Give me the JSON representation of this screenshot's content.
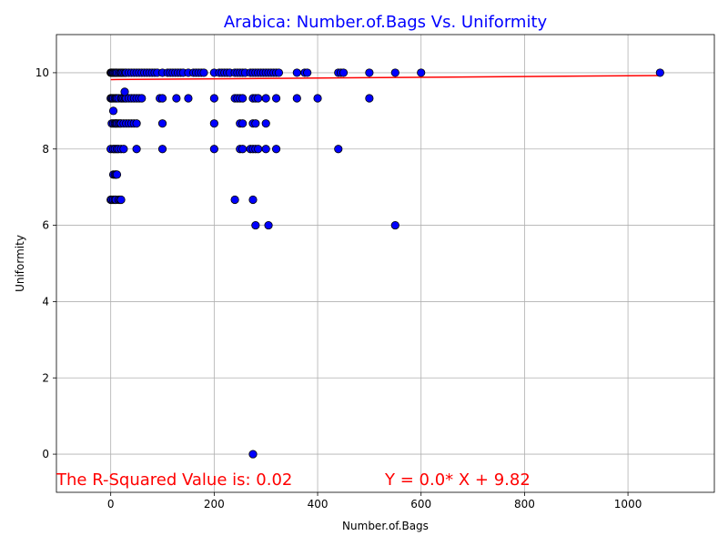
{
  "chart_data": {
    "type": "scatter",
    "title": "Arabica: Number.of.Bags Vs. Uniformity",
    "xlabel": "Number.of.Bags",
    "ylabel": "Uniformity",
    "xlim": [
      -105,
      1167
    ],
    "ylim": [
      -1,
      11
    ],
    "xticks": [
      0,
      200,
      400,
      600,
      800,
      1000
    ],
    "yticks": [
      0,
      2,
      4,
      6,
      8,
      10
    ],
    "grid": true,
    "colors": {
      "points": "#0000ff",
      "point_edge": "#000000",
      "fit_line": "#ff0000",
      "title": "#0000ff",
      "annotation": "#ff0000"
    },
    "points": {
      "x": [
        0,
        1,
        2,
        3,
        5,
        6,
        8,
        10,
        12,
        15,
        18,
        20,
        22,
        25,
        28,
        30,
        35,
        40,
        45,
        50,
        55,
        60,
        65,
        70,
        75,
        80,
        85,
        90,
        100,
        110,
        115,
        120,
        125,
        130,
        135,
        140,
        150,
        160,
        165,
        170,
        175,
        180,
        200,
        210,
        215,
        220,
        225,
        230,
        240,
        245,
        250,
        255,
        260,
        270,
        275,
        280,
        285,
        290,
        295,
        300,
        305,
        310,
        315,
        320,
        325,
        360,
        375,
        380,
        440,
        445,
        450,
        500,
        550,
        600,
        1062,
        0,
        1,
        3,
        5,
        8,
        10,
        12,
        15,
        20,
        22,
        25,
        28,
        30,
        35,
        40,
        45,
        50,
        55,
        60,
        95,
        100,
        127,
        150,
        200,
        240,
        245,
        250,
        255,
        275,
        280,
        285,
        300,
        320,
        360,
        400,
        500,
        2,
        5,
        8,
        10,
        12,
        15,
        18,
        20,
        25,
        30,
        35,
        40,
        45,
        50,
        100,
        200,
        250,
        255,
        275,
        280,
        300,
        0,
        5,
        8,
        12,
        15,
        20,
        25,
        50,
        100,
        200,
        250,
        255,
        270,
        275,
        280,
        285,
        300,
        320,
        440,
        5,
        8,
        10,
        12,
        0,
        2,
        5,
        8,
        10,
        15,
        18,
        20,
        240,
        275,
        280,
        305,
        550,
        275,
        5,
        27
      ],
      "y": [
        10,
        10,
        10,
        10,
        10,
        10,
        10,
        10,
        10,
        10,
        10,
        10,
        10,
        10,
        10,
        10,
        10,
        10,
        10,
        10,
        10,
        10,
        10,
        10,
        10,
        10,
        10,
        10,
        10,
        10,
        10,
        10,
        10,
        10,
        10,
        10,
        10,
        10,
        10,
        10,
        10,
        10,
        10,
        10,
        10,
        10,
        10,
        10,
        10,
        10,
        10,
        10,
        10,
        10,
        10,
        10,
        10,
        10,
        10,
        10,
        10,
        10,
        10,
        10,
        10,
        10,
        10,
        10,
        10,
        10,
        10,
        10,
        10,
        10,
        10,
        9.33,
        9.33,
        9.33,
        9.33,
        9.33,
        9.33,
        9.33,
        9.33,
        9.33,
        9.33,
        9.33,
        9.33,
        9.33,
        9.33,
        9.33,
        9.33,
        9.33,
        9.33,
        9.33,
        9.33,
        9.33,
        9.33,
        9.33,
        9.33,
        9.33,
        9.33,
        9.33,
        9.33,
        9.33,
        9.33,
        9.33,
        9.33,
        9.33,
        9.33,
        9.33,
        9.33,
        8.67,
        8.67,
        8.67,
        8.67,
        8.67,
        8.67,
        8.67,
        8.67,
        8.67,
        8.67,
        8.67,
        8.67,
        8.67,
        8.67,
        8.67,
        8.67,
        8.67,
        8.67,
        8.67,
        8.67,
        8.67,
        8,
        8,
        8,
        8,
        8,
        8,
        8,
        8,
        8,
        8,
        8,
        8,
        8,
        8,
        8,
        8,
        8,
        8,
        8,
        7.33,
        7.33,
        7.33,
        7.33,
        6.67,
        6.67,
        6.67,
        6.67,
        6.67,
        6.67,
        6.67,
        6.67,
        6.67,
        6.67,
        6,
        6,
        6,
        0,
        9,
        9.5
      ]
    },
    "fit": {
      "slope": 0.0001,
      "intercept": 9.82,
      "x_range": [
        0,
        1062
      ]
    },
    "annotations": {
      "r_squared": "The R-Squared Value is: 0.02",
      "equation": "Y = 0.0* X + 9.82"
    }
  }
}
